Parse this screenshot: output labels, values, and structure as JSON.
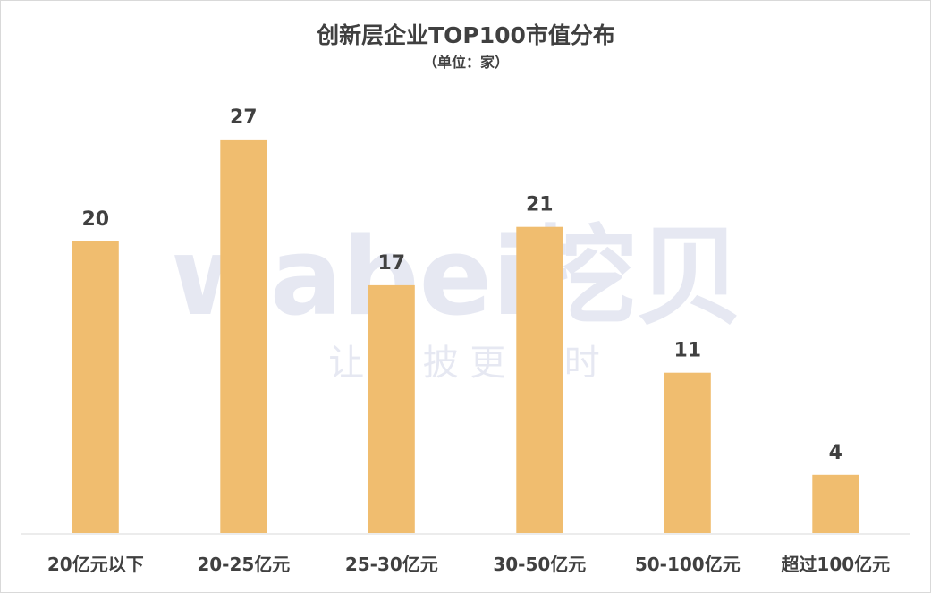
{
  "chart_data": {
    "type": "bar",
    "title": "创新层企业TOP100市值分布",
    "subtitle": "（单位：家）",
    "categories": [
      "20亿元以下",
      "20-25亿元",
      "25-30亿元",
      "30-50亿元",
      "50-100亿元",
      "超过100亿元"
    ],
    "values": [
      20,
      27,
      17,
      21,
      11,
      4
    ],
    "ylim": [
      0,
      30
    ],
    "grid": false,
    "legend": "none",
    "bar_color": "#f0bd6f"
  },
  "watermark": {
    "brand": "wabei挖贝",
    "slogan": "让 信 披 更 及 时"
  }
}
